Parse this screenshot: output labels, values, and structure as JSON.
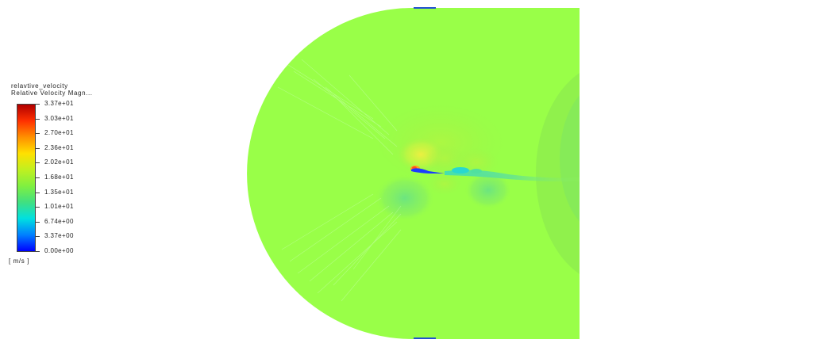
{
  "legend": {
    "variable_name": "relavtive_velocity",
    "field_title": "Relative Velocity Magn...",
    "units": "[ m/s ]",
    "ticks": [
      "3.37e+01",
      "3.03e+01",
      "2.70e+01",
      "2.36e+01",
      "2.02e+01",
      "1.68e+01",
      "1.35e+01",
      "1.01e+01",
      "6.74e+00",
      "3.37e+00",
      "0.00e+00"
    ],
    "colormap": [
      "#0000ff",
      "#0080ff",
      "#00e0e0",
      "#40e080",
      "#80f040",
      "#c0f020",
      "#ffe000",
      "#ff9000",
      "#ff3000",
      "#b00000"
    ]
  },
  "contour": {
    "background_color": "#99ff48",
    "marker_color": "#2050d0"
  }
}
